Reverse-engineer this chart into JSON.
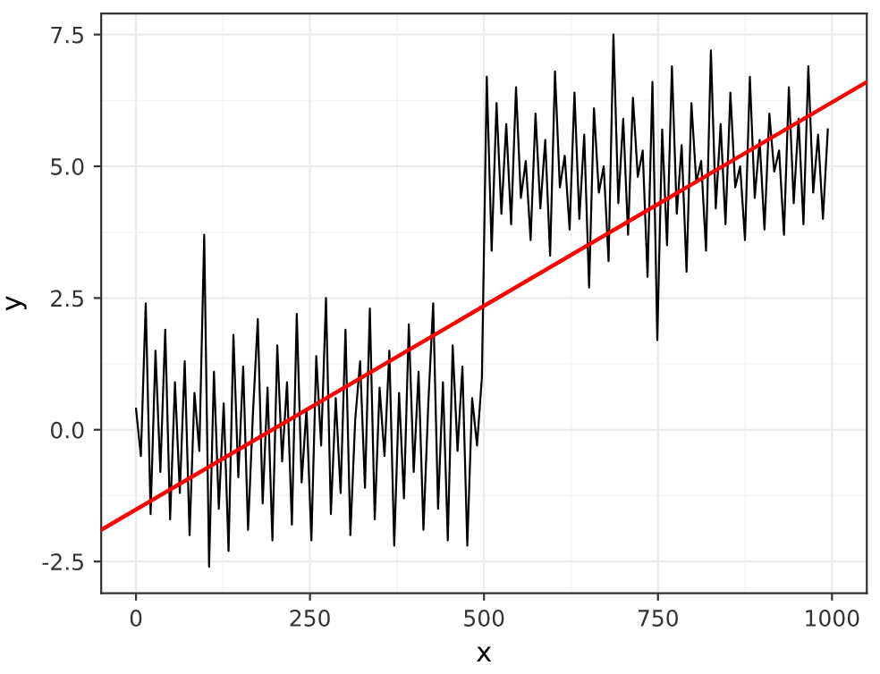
{
  "chart_data": {
    "type": "line",
    "xlabel": "x",
    "ylabel": "y",
    "grid": true,
    "legend": false,
    "xlim": [
      -50,
      1050
    ],
    "ylim": [
      -3.1,
      7.9
    ],
    "xticks": [
      0,
      250,
      500,
      750,
      1000
    ],
    "yticks": [
      {
        "value": -2.5,
        "label": "-2.5"
      },
      {
        "value": 0,
        "label": "0.0"
      },
      {
        "value": 2.5,
        "label": "2.5"
      },
      {
        "value": 5,
        "label": "5.0"
      },
      {
        "value": 7.5,
        "label": "7.5"
      }
    ],
    "series": [
      {
        "color": "#000000",
        "x": [
          0,
          7,
          14,
          21,
          28,
          35,
          42,
          49,
          56,
          63,
          70,
          77,
          84,
          91,
          98,
          105,
          112,
          119,
          126,
          133,
          140,
          147,
          154,
          161,
          168,
          175,
          182,
          189,
          196,
          203,
          210,
          217,
          224,
          231,
          238,
          245,
          252,
          259,
          266,
          273,
          280,
          287,
          294,
          301,
          308,
          315,
          322,
          329,
          336,
          343,
          350,
          357,
          364,
          371,
          378,
          385,
          392,
          399,
          406,
          413,
          420,
          427,
          434,
          441,
          448,
          455,
          462,
          469,
          476,
          483,
          490,
          497,
          504,
          511,
          518,
          525,
          532,
          539,
          546,
          553,
          560,
          567,
          574,
          581,
          588,
          595,
          602,
          609,
          616,
          623,
          630,
          637,
          644,
          651,
          658,
          665,
          672,
          679,
          686,
          693,
          700,
          707,
          714,
          721,
          728,
          735,
          742,
          749,
          756,
          763,
          770,
          777,
          784,
          791,
          798,
          805,
          812,
          819,
          826,
          833,
          840,
          847,
          854,
          861,
          868,
          875,
          882,
          889,
          896,
          903,
          910,
          917,
          924,
          931,
          938,
          945,
          952,
          959,
          966,
          973,
          980,
          987,
          994
        ],
        "values": [
          0.4,
          -0.5,
          2.4,
          -1.6,
          1.5,
          -0.8,
          1.9,
          -1.7,
          0.9,
          -1.2,
          1.3,
          -2.0,
          0.7,
          -0.4,
          3.7,
          -2.6,
          1.1,
          -1.5,
          0.5,
          -2.3,
          1.8,
          -0.9,
          1.2,
          -1.9,
          0.3,
          2.1,
          -1.4,
          0.8,
          -2.1,
          1.6,
          -0.6,
          0.9,
          -1.8,
          2.2,
          -1.0,
          0.4,
          -2.1,
          1.4,
          -0.3,
          2.5,
          -1.6,
          0.6,
          -1.2,
          1.9,
          -2.0,
          0.2,
          1.3,
          -1.1,
          2.3,
          -1.7,
          0.8,
          -0.5,
          1.5,
          -2.2,
          0.7,
          -1.3,
          2.0,
          -0.8,
          1.1,
          -1.9,
          0.5,
          2.4,
          -1.5,
          0.9,
          -2.1,
          1.6,
          -0.4,
          1.2,
          -2.2,
          0.6,
          -0.3,
          1.0,
          6.7,
          3.4,
          6.2,
          4.1,
          5.8,
          3.9,
          6.5,
          4.4,
          5.1,
          3.6,
          6.0,
          4.2,
          5.5,
          3.3,
          6.8,
          4.6,
          5.2,
          3.8,
          6.4,
          4.0,
          5.6,
          2.7,
          6.1,
          4.5,
          5.0,
          3.2,
          7.5,
          4.3,
          5.9,
          3.7,
          6.3,
          4.8,
          5.3,
          2.9,
          6.6,
          1.7,
          5.7,
          3.5,
          6.9,
          4.1,
          5.4,
          3.0,
          6.2,
          4.7,
          5.1,
          3.4,
          7.2,
          4.2,
          5.8,
          3.9,
          6.4,
          4.6,
          5.0,
          3.6,
          6.7,
          4.4,
          5.5,
          3.8,
          6.0,
          4.9,
          5.3,
          3.7,
          6.5,
          4.3,
          5.9,
          3.9,
          6.9,
          4.5,
          5.6,
          4.0,
          5.7
        ]
      },
      {
        "color": "#ff0000",
        "x": [
          -50,
          1050
        ],
        "values": [
          -1.9,
          6.6
        ]
      }
    ]
  }
}
